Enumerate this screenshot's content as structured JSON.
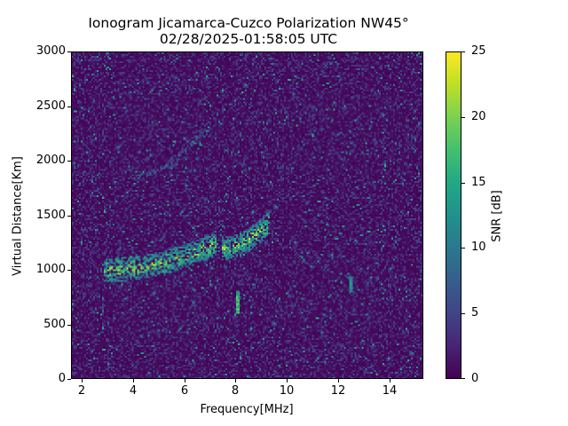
{
  "chart_data": {
    "type": "heatmap",
    "title": "Ionogram Jicamarca-Cuzco Polarization NW45°",
    "subtitle": "02/28/2025-01:58:05 UTC",
    "xlabel": "Frequency[MHz]",
    "ylabel": "Virtual Distance[Km]",
    "xlim": [
      1.6,
      15.3
    ],
    "ylim": [
      0,
      3000
    ],
    "xticks": [
      2,
      4,
      6,
      8,
      10,
      12,
      14
    ],
    "yticks": [
      0,
      500,
      1000,
      1500,
      2000,
      2500,
      3000
    ],
    "colorbar": {
      "label": "SNR [dB]",
      "range": [
        0,
        25
      ],
      "ticks": [
        0,
        5,
        10,
        15,
        20,
        25
      ],
      "colormap": "viridis"
    },
    "grid": false,
    "features": [
      {
        "name": "F-layer 1-hop trace",
        "freq_start_mhz": 2.8,
        "freq_end_mhz": 7.2,
        "distance_km_start": 1000,
        "distance_km_end": 1250,
        "peak_snr_db": 25
      },
      {
        "name": "F-layer trace upper cusp",
        "freq_start_mhz": 7.4,
        "freq_end_mhz": 9.3,
        "distance_km_start": 1200,
        "distance_km_end": 1450,
        "peak_snr_db": 25
      },
      {
        "name": "2-hop trace",
        "freq_start_mhz": 3.8,
        "freq_end_mhz": 7.0,
        "distance_km_start": 1850,
        "distance_km_end": 2400,
        "peak_snr_db": 12
      },
      {
        "name": "interference line",
        "freq_mhz": 8.05,
        "distance_km_start": 600,
        "distance_km_end": 800,
        "peak_snr_db": 20
      },
      {
        "name": "interference line",
        "freq_mhz": 12.5,
        "distance_km_start": 800,
        "distance_km_end": 950,
        "peak_snr_db": 15
      }
    ],
    "background_snr_db": [
      0,
      6
    ]
  }
}
